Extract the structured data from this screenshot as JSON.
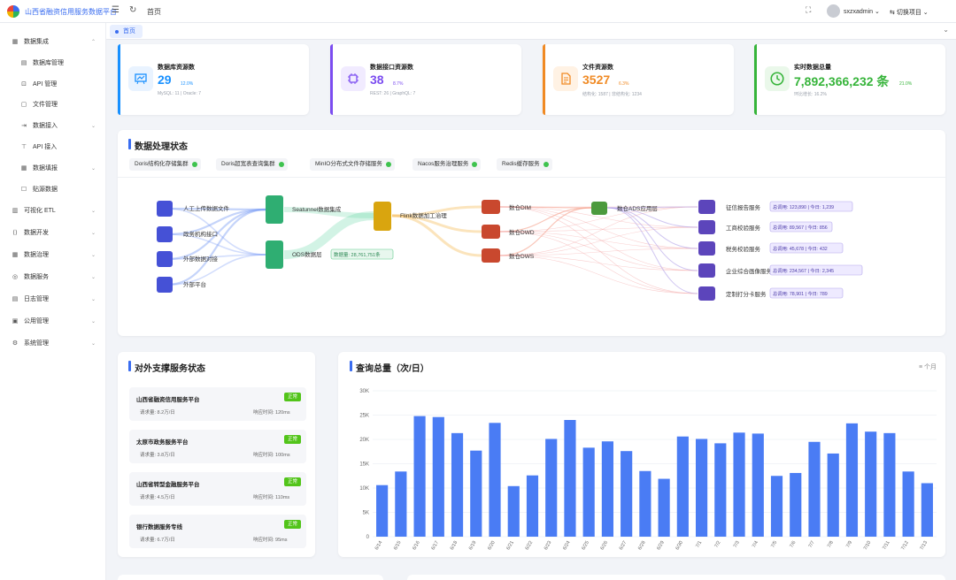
{
  "app": {
    "title": "山西省融资信用服务数据平台",
    "breadcrumb": "首页",
    "user": "sxzxadmin",
    "switch_label": "切换项目"
  },
  "tabs": [
    {
      "label": "首页"
    }
  ],
  "sidebar": {
    "items": [
      {
        "label": "数据集成",
        "icon": "database-icon",
        "glyph": "▦",
        "arrow": "⌃"
      },
      {
        "label": "数据库管理",
        "icon": "table-icon",
        "glyph": "▤",
        "sub": true
      },
      {
        "label": "API 管理",
        "icon": "api-icon",
        "glyph": "⊡",
        "sub": true
      },
      {
        "label": "文件管理",
        "icon": "file-icon",
        "glyph": "▢",
        "sub": true
      },
      {
        "label": "数据接入",
        "icon": "import-icon",
        "glyph": "⇥",
        "arrow": "⌄",
        "sub": true
      },
      {
        "label": "API 接入",
        "icon": "plug-icon",
        "glyph": "⊤",
        "sub": true
      },
      {
        "label": "数据填报",
        "icon": "form-icon",
        "glyph": "▦",
        "arrow": "⌄",
        "sub": true
      },
      {
        "label": "贴源数据",
        "icon": "source-icon",
        "glyph": "☐",
        "sub": true
      },
      {
        "label": "可视化 ETL",
        "icon": "etl-icon",
        "glyph": "▥",
        "arrow": "⌄"
      },
      {
        "label": "数据开发",
        "icon": "code-icon",
        "glyph": "⟨⟩",
        "arrow": "⌄"
      },
      {
        "label": "数据治理",
        "icon": "govern-icon",
        "glyph": "▦",
        "arrow": "⌄"
      },
      {
        "label": "数据服务",
        "icon": "service-icon",
        "glyph": "◎",
        "arrow": "⌄"
      },
      {
        "label": "日志管理",
        "icon": "log-icon",
        "glyph": "▤",
        "arrow": "⌄"
      },
      {
        "label": "公用管理",
        "icon": "common-icon",
        "glyph": "▣",
        "arrow": "⌄"
      },
      {
        "label": "系统管理",
        "icon": "gear-icon",
        "glyph": "⚙",
        "arrow": "⌄"
      }
    ]
  },
  "stats": [
    {
      "title": "数据库资源数",
      "value": "29",
      "badge": "12.0%",
      "sub": "MySQL: 11 | Oracle: 7",
      "color": "#1890ff",
      "bg": "#e9f3ff",
      "icon": "chart-board-icon"
    },
    {
      "title": "数据接口资源数",
      "value": "38",
      "badge": "8.7%",
      "sub": "REST: 26 | GraphQL: 7",
      "color": "#7b4cf0",
      "bg": "#f1ebff",
      "icon": "chip-icon"
    },
    {
      "title": "文件资源数",
      "value": "3527",
      "badge": "6.3%",
      "sub": "结构化: 1587 | 非结构化: 1234",
      "color": "#f08a24",
      "bg": "#fff2e4",
      "icon": "document-icon"
    },
    {
      "title": "实时数据总量",
      "value": "7,892,366,232 条",
      "badge": "21.0%",
      "sub": "环比增长: 16.2%",
      "color": "#36b43a",
      "bg": "#eaf8ea",
      "icon": "clock-icon"
    }
  ],
  "process": {
    "title": "数据处理状态",
    "chips": [
      "Doris结构化存储集群",
      "Doris超宽表查询集群",
      "MinIO分布式文件存储服务",
      "Nacos服务治理服务",
      "Redis缓存服务"
    ],
    "sources": [
      "人工上传数据文件",
      "政务机构接口",
      "外部数据对接",
      "外部平台"
    ],
    "hubs": [
      "Seatunnel数据集成",
      "ODS数据层"
    ],
    "ods_badge": "数据量: 28,761,751条",
    "flink": "Flink数据加工治理",
    "layers": [
      "数仓DIM",
      "数仓DWD",
      "数仓DWS"
    ],
    "ads": "数仓ADS应用层",
    "outputs": [
      {
        "name": "征信报告服务",
        "stat": "总调用: 123,890 | 今日: 1,239"
      },
      {
        "name": "工商校验服务",
        "stat": "总调用: 89,567 | 今日: 856"
      },
      {
        "name": "税务校验服务",
        "stat": "总调用: 45,678 | 今日: 432"
      },
      {
        "name": "企业综合画像服务",
        "stat": "总调用: 234,567 | 今日: 2,345"
      },
      {
        "name": "定制打分卡服务",
        "stat": "总调用: 78,901 | 今日: 789"
      }
    ]
  },
  "services": {
    "title": "对外支撑服务状态",
    "items": [
      {
        "name": "山西省融资信用服务平台",
        "status": "正常",
        "requests": "请求量: 8.2万/日",
        "latency": "响应时间: 120ms"
      },
      {
        "name": "太原市政务服务平台",
        "status": "正常",
        "requests": "请求量: 3.8万/日",
        "latency": "响应时间: 100ms"
      },
      {
        "name": "山西省转型金融服务平台",
        "status": "正常",
        "requests": "请求量: 4.5万/日",
        "latency": "响应时间: 110ms"
      },
      {
        "name": "银行数据服务专线",
        "status": "正常",
        "requests": "请求量: 6.7万/日",
        "latency": "响应时间: 95ms"
      }
    ]
  },
  "chart_data": {
    "type": "bar",
    "title": "查询总量（次/日）",
    "xlabel": "",
    "ylabel": "",
    "ylim": [
      0,
      30000
    ],
    "yticks": [
      "0",
      "5K",
      "10K",
      "15K",
      "20K",
      "25K",
      "30K"
    ],
    "categories": [
      "6/14",
      "6/15",
      "6/16",
      "6/17",
      "6/18",
      "6/19",
      "6/20",
      "6/21",
      "6/22",
      "6/23",
      "6/24",
      "6/25",
      "6/26",
      "6/27",
      "6/28",
      "6/29",
      "6/30",
      "7/1",
      "7/2",
      "7/3",
      "7/4",
      "7/5",
      "7/6",
      "7/7",
      "7/8",
      "7/9",
      "7/10",
      "7/11",
      "7/12",
      "7/13"
    ],
    "values": [
      10600,
      13400,
      24800,
      24600,
      21300,
      17700,
      23400,
      10400,
      12600,
      20100,
      24000,
      18300,
      19600,
      17600,
      13500,
      11900,
      20600,
      20100,
      19200,
      21400,
      21200,
      12500,
      13100,
      19500,
      17100,
      23300,
      21600,
      21300,
      13400,
      11000
    ],
    "grid": true,
    "bar_color": "#4a7cf4"
  },
  "chart_tools": {
    "unit": "个月"
  }
}
